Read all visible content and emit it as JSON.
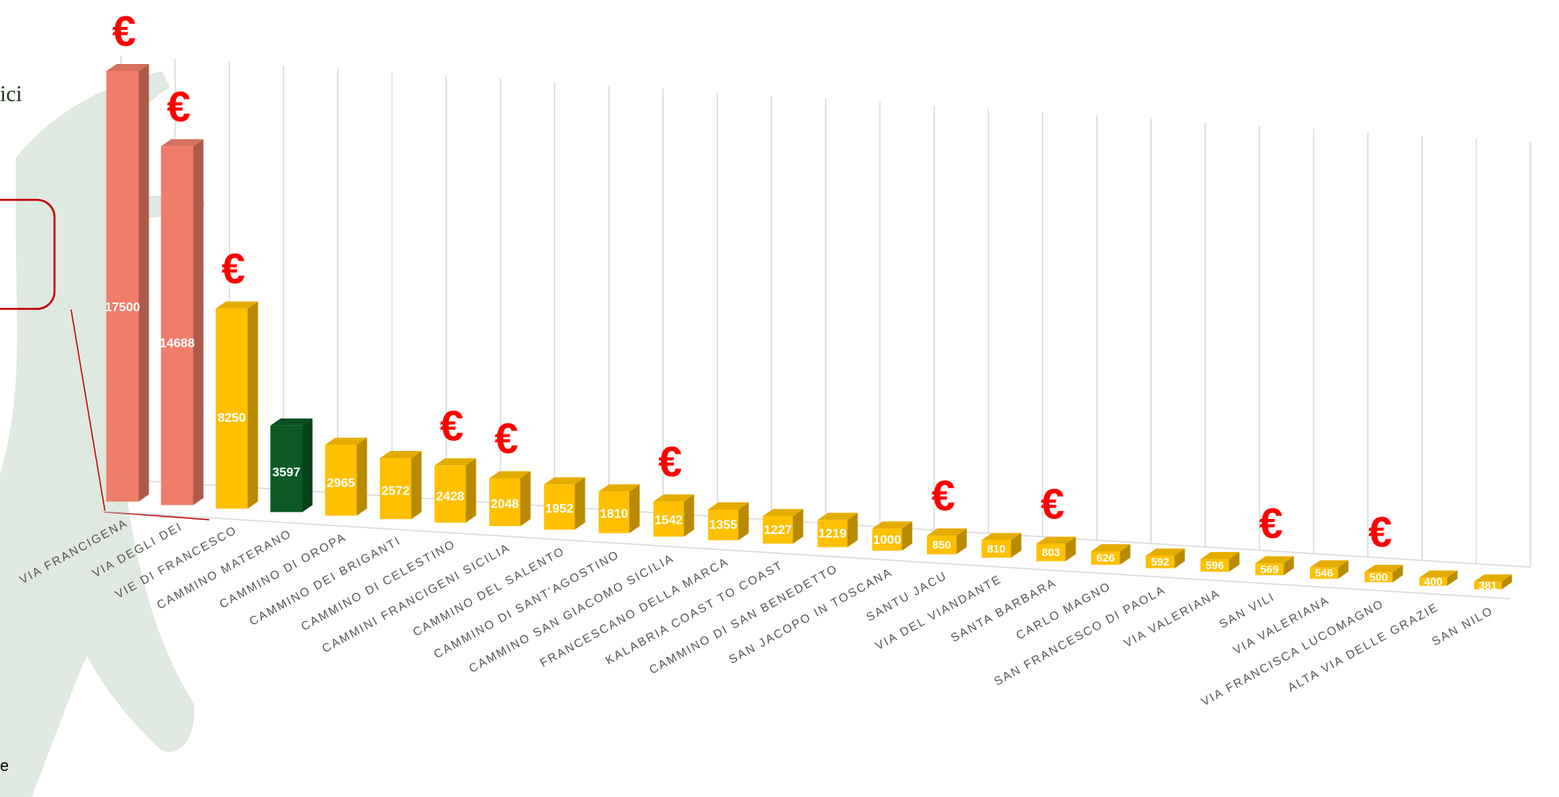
{
  "chart_data": {
    "type": "bar3d",
    "categories": [
      "VIA FRANCIGENA",
      "VIA DEGLI DEI",
      "VIE DI FRANCESCO",
      "CAMMINO MATERANO",
      "CAMMINO DI OROPA",
      "CAMMINO DEI BRIGANTI",
      "CAMMINO DI CELESTINO",
      "CAMMINI FRANCIGENI SICILIA",
      "CAMMINO DEL SALENTO",
      "CAMMINO DI SANT'AGOSTINO",
      "CAMMINO SAN GIACOMO SICILIA",
      "FRANCESCANO DELLA MARCA",
      "KALABRIA COAST TO COAST",
      "CAMMINO DI SAN BENEDETTO",
      "SAN JACOPO IN TOSCANA",
      "SANTU JACU",
      "VIA DEL VIANDANTE",
      "SANTA BARBARA",
      "CARLO MAGNO",
      "SAN FRANCESCO DI PAOLA",
      "VIA VALERIANA",
      "SAN VILI",
      "VIA VALERIANA",
      "VIA FRANCISCA LUCOMAGNO",
      "ALTA VIA DELLE GRAZIE",
      "SAN NILO"
    ],
    "values": [
      17500,
      14688,
      8250,
      3597,
      2965,
      2572,
      2428,
      2048,
      1952,
      1810,
      1542,
      1355,
      1227,
      1219,
      1000,
      850,
      810,
      803,
      626,
      592,
      596,
      569,
      546,
      500,
      400,
      381
    ],
    "colors": [
      "#f07d6a",
      "#f07d6a",
      "#ffc000",
      "#0b5a25",
      "#ffc000",
      "#ffc000",
      "#ffc000",
      "#ffc000",
      "#ffc000",
      "#ffc000",
      "#ffc000",
      "#ffc000",
      "#ffc000",
      "#ffc000",
      "#ffc000",
      "#ffc000",
      "#ffc000",
      "#ffc000",
      "#ffc000",
      "#ffc000",
      "#ffc000",
      "#ffc000",
      "#ffc000",
      "#ffc000",
      "#ffc000",
      "#ffc000"
    ],
    "annotations": [
      "€",
      "€",
      "€",
      null,
      null,
      null,
      "€",
      "€",
      null,
      null,
      "€",
      null,
      null,
      null,
      null,
      "€",
      null,
      "€",
      null,
      null,
      null,
      "€",
      null,
      "€",
      null,
      null
    ],
    "annotation_color": "#ff0000"
  },
  "side_text": {
    "top": "ici",
    "bottom": "e"
  }
}
